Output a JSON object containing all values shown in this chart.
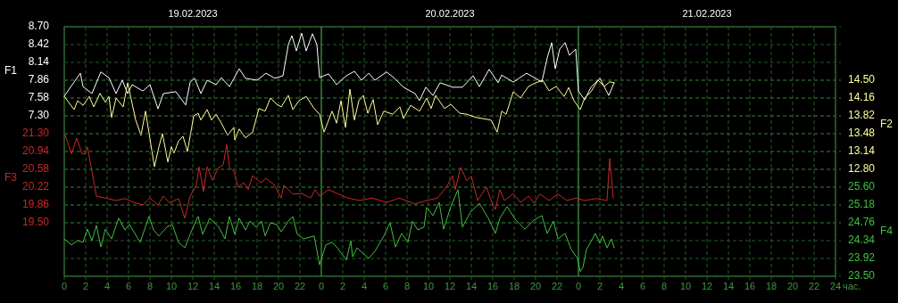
{
  "chart_data": [
    {
      "type": "line",
      "xlim": [
        "2023-02-19T00:00",
        "2023-02-22T00:00"
      ],
      "xticks": [
        {
          "value": "2023-02-19T00:00",
          "label": "0"
        },
        {
          "value": "2023-02-19T02:00",
          "label": "2"
        },
        {
          "value": "2023-02-19T04:00",
          "label": "4"
        },
        {
          "value": "2023-02-19T06:00",
          "label": "6"
        },
        {
          "value": "2023-02-19T08:00",
          "label": "8"
        },
        {
          "value": "2023-02-19T10:00",
          "label": "10"
        },
        {
          "value": "2023-02-19T12:00",
          "label": "12"
        },
        {
          "value": "2023-02-19T14:00",
          "label": "14"
        },
        {
          "value": "2023-02-19T16:00",
          "label": "16"
        },
        {
          "value": "2023-02-19T18:00",
          "label": "18"
        },
        {
          "value": "2023-02-19T20:00",
          "label": "20"
        },
        {
          "value": "2023-02-19T22:00",
          "label": "22"
        },
        {
          "value": "2023-02-20T00:00",
          "label": "0"
        },
        {
          "value": "2023-02-20T02:00",
          "label": "2"
        },
        {
          "value": "2023-02-20T04:00",
          "label": "4"
        },
        {
          "value": "2023-02-20T06:00",
          "label": "6"
        },
        {
          "value": "2023-02-20T08:00",
          "label": "8"
        },
        {
          "value": "2023-02-20T10:00",
          "label": "10"
        },
        {
          "value": "2023-02-20T12:00",
          "label": "12"
        },
        {
          "value": "2023-02-20T14:00",
          "label": "14"
        },
        {
          "value": "2023-02-20T16:00",
          "label": "16"
        },
        {
          "value": "2023-02-20T18:00",
          "label": "18"
        },
        {
          "value": "2023-02-20T20:00",
          "label": "20"
        },
        {
          "value": "2023-02-20T22:00",
          "label": "22"
        },
        {
          "value": "2023-02-21T00:00",
          "label": "0"
        },
        {
          "value": "2023-02-21T02:00",
          "label": "2"
        },
        {
          "value": "2023-02-21T04:00",
          "label": "4"
        },
        {
          "value": "2023-02-21T06:00",
          "label": "6"
        },
        {
          "value": "2023-02-21T08:00",
          "label": "8"
        },
        {
          "value": "2023-02-21T10:00",
          "label": "10"
        },
        {
          "value": "2023-02-21T12:00",
          "label": "12"
        },
        {
          "value": "2023-02-21T14:00",
          "label": "14"
        },
        {
          "value": "2023-02-21T16:00",
          "label": "16"
        },
        {
          "value": "2023-02-21T18:00",
          "label": "18"
        },
        {
          "value": "2023-02-21T20:00",
          "label": "20"
        },
        {
          "value": "2023-02-21T22:00",
          "label": "22"
        },
        {
          "value": "2023-02-22T00:00",
          "label": "24"
        }
      ],
      "xlabel": "час.",
      "x2lim": [
        "2023-02-19T00:00",
        "2023-02-22T00:00"
      ],
      "x2ticks": [
        {
          "value": "2023-02-19T12:00",
          "label": "19.02.2023"
        },
        {
          "value": "2023-02-20T12:00",
          "label": "20.02.2023"
        },
        {
          "value": "2023-02-21T12:00",
          "label": "21.02.2023"
        }
      ],
      "ylabel": "F1",
      "ylim": [
        4.78,
        8.7
      ],
      "yticks": [
        {
          "value": 8.7,
          "label": "8.70"
        },
        {
          "value": 8.42,
          "label": "8.42"
        },
        {
          "value": 8.14,
          "label": "8.14"
        },
        {
          "value": 7.86,
          "label": "7.86"
        },
        {
          "value": 7.58,
          "label": "7.58"
        },
        {
          "value": 7.3,
          "label": "7.30"
        }
      ],
      "y2label": "F2",
      "y2lim": [
        10.76,
        15.52
      ],
      "y2ticks": [
        {
          "value": 14.5,
          "label": "14.50"
        },
        {
          "value": 14.16,
          "label": "14.16"
        },
        {
          "value": 13.82,
          "label": "13.82"
        },
        {
          "value": 13.48,
          "label": "13.48"
        },
        {
          "value": 13.14,
          "label": "13.14"
        },
        {
          "value": 12.8,
          "label": "12.80"
        }
      ],
      "grid": true,
      "series": [
        {
          "color": "#ffffff",
          "axis": "y",
          "x": [
            "2023-02-19T00:00",
            "2023-02-19T01:30",
            "2023-02-19T01:45",
            "2023-02-19T02:35",
            "2023-02-19T03:25",
            "2023-02-19T04:10",
            "2023-02-19T04:50",
            "2023-02-19T05:25",
            "2023-02-19T05:55",
            "2023-02-19T06:20",
            "2023-02-19T07:20",
            "2023-02-19T08:00",
            "2023-02-19T08:45",
            "2023-02-19T09:15",
            "2023-02-19T10:25",
            "2023-02-19T11:20",
            "2023-02-19T11:45",
            "2023-02-19T12:10",
            "2023-02-19T12:45",
            "2023-02-19T13:20",
            "2023-02-19T14:10",
            "2023-02-19T14:40",
            "2023-02-19T15:25",
            "2023-02-19T16:20",
            "2023-02-19T16:55",
            "2023-02-19T18:00",
            "2023-02-19T18:50",
            "2023-02-19T19:40",
            "2023-02-19T20:25",
            "2023-02-19T20:55",
            "2023-02-19T21:15",
            "2023-02-19T21:40",
            "2023-02-19T22:10",
            "2023-02-19T22:35",
            "2023-02-19T23:10",
            "2023-02-19T23:35",
            "2023-02-19T23:50",
            "2023-02-20T00:40",
            "2023-02-20T01:25",
            "2023-02-20T02:20",
            "2023-02-20T03:05",
            "2023-02-20T03:45",
            "2023-02-20T04:25",
            "2023-02-20T05:00",
            "2023-02-20T06:05",
            "2023-02-20T06:50",
            "2023-02-20T07:40",
            "2023-02-20T08:45",
            "2023-02-20T09:10",
            "2023-02-20T09:45",
            "2023-02-20T10:25",
            "2023-02-20T11:05",
            "2023-02-20T12:15",
            "2023-02-20T13:10",
            "2023-02-20T14:10",
            "2023-02-20T14:45",
            "2023-02-20T15:40",
            "2023-02-20T16:30",
            "2023-02-20T16:50",
            "2023-02-20T17:55",
            "2023-02-20T19:10",
            "2023-02-20T20:35",
            "2023-02-20T21:05",
            "2023-02-20T21:30",
            "2023-02-20T21:50",
            "2023-02-20T22:15",
            "2023-02-20T22:45",
            "2023-02-20T23:10",
            "2023-02-20T23:45",
            "2023-02-21T00:00",
            "2023-02-21T00:35",
            "2023-02-21T01:10",
            "2023-02-21T02:00",
            "2023-02-21T02:50",
            "2023-02-21T03:20"
          ],
          "values": [
            7.61,
            7.97,
            7.76,
            7.65,
            7.99,
            7.9,
            7.65,
            7.86,
            7.65,
            7.79,
            7.69,
            7.79,
            7.41,
            7.65,
            7.68,
            7.47,
            7.83,
            7.89,
            7.65,
            7.86,
            7.79,
            7.9,
            7.76,
            8.04,
            7.89,
            7.86,
            7.97,
            7.89,
            7.93,
            8.42,
            8.56,
            8.32,
            8.6,
            8.32,
            8.59,
            8.42,
            7.9,
            7.96,
            7.79,
            7.93,
            8,
            7.86,
            7.97,
            7.86,
            7.99,
            7.89,
            7.75,
            7.65,
            7.54,
            7.75,
            7.62,
            7.82,
            7.75,
            7.75,
            7.93,
            7.76,
            8.03,
            7.82,
            7.94,
            7.83,
            7.97,
            7.83,
            8.21,
            8.45,
            8.04,
            8.35,
            8.45,
            8.25,
            8.35,
            7.69,
            7.55,
            7.75,
            7.89,
            7.62,
            7.82
          ]
        },
        {
          "color": "#ffff99",
          "axis": "y2",
          "x": [
            "2023-02-19T00:00",
            "2023-02-19T00:55",
            "2023-02-19T01:15",
            "2023-02-19T01:45",
            "2023-02-19T02:20",
            "2023-02-19T02:45",
            "2023-02-19T03:20",
            "2023-02-19T03:50",
            "2023-02-19T04:10",
            "2023-02-19T04:25",
            "2023-02-19T04:50",
            "2023-02-19T05:30",
            "2023-02-19T05:55",
            "2023-02-19T06:40",
            "2023-02-19T07:10",
            "2023-02-19T07:35",
            "2023-02-19T08:25",
            "2023-02-19T08:50",
            "2023-02-19T09:10",
            "2023-02-19T09:40",
            "2023-02-19T10:00",
            "2023-02-19T10:15",
            "2023-02-19T10:40",
            "2023-02-19T11:05",
            "2023-02-19T11:30",
            "2023-02-19T12:05",
            "2023-02-19T12:30",
            "2023-02-19T12:45",
            "2023-02-19T13:20",
            "2023-02-19T13:45",
            "2023-02-19T14:10",
            "2023-02-19T14:40",
            "2023-02-19T15:15",
            "2023-02-19T15:50",
            "2023-02-19T15:55",
            "2023-02-19T16:20",
            "2023-02-19T16:55",
            "2023-02-19T17:35",
            "2023-02-19T18:10",
            "2023-02-19T18:45",
            "2023-02-19T19:15",
            "2023-02-19T19:50",
            "2023-02-19T20:15",
            "2023-02-19T20:55",
            "2023-02-19T21:20",
            "2023-02-19T21:55",
            "2023-02-19T22:35",
            "2023-02-19T23:20",
            "2023-02-19T23:50",
            "2023-02-20T00:15",
            "2023-02-20T01:00",
            "2023-02-20T01:25",
            "2023-02-20T01:50",
            "2023-02-20T02:15",
            "2023-02-20T02:40",
            "2023-02-20T03:05",
            "2023-02-20T03:30",
            "2023-02-20T03:55",
            "2023-02-20T04:20",
            "2023-02-20T04:50",
            "2023-02-20T05:15",
            "2023-02-20T05:50",
            "2023-02-20T06:40",
            "2023-02-20T07:20",
            "2023-02-20T07:40",
            "2023-02-20T08:20",
            "2023-02-20T09:10",
            "2023-02-20T09:50",
            "2023-02-20T10:15",
            "2023-02-20T10:40",
            "2023-02-20T11:30",
            "2023-02-20T12:05",
            "2023-02-20T12:55",
            "2023-02-20T13:35",
            "2023-02-20T14:25",
            "2023-02-20T15:00",
            "2023-02-20T15:50",
            "2023-02-20T16:25",
            "2023-02-20T16:50",
            "2023-02-20T17:15",
            "2023-02-20T17:55",
            "2023-02-20T18:35",
            "2023-02-20T19:20",
            "2023-02-20T20:00",
            "2023-02-20T20:40",
            "2023-02-20T21:15",
            "2023-02-20T21:55",
            "2023-02-20T22:40",
            "2023-02-20T23:05",
            "2023-02-20T23:35",
            "2023-02-21T00:10",
            "2023-02-21T00:35",
            "2023-02-21T01:10",
            "2023-02-21T01:50",
            "2023-02-21T02:25",
            "2023-02-21T02:55",
            "2023-02-21T03:20"
          ],
          "values": [
            14.19,
            13.94,
            14.11,
            14.02,
            14.19,
            13.99,
            14.25,
            14.08,
            14.19,
            13.79,
            14.16,
            13.99,
            14.45,
            13.74,
            13.45,
            13.91,
            12.85,
            13.23,
            13.48,
            12.94,
            13.23,
            13.11,
            13.34,
            13.43,
            13.14,
            13.82,
            13.87,
            13.74,
            13.94,
            13.74,
            13.85,
            13.68,
            13.45,
            13.6,
            13.36,
            13.57,
            13.4,
            13.51,
            13.96,
            13.91,
            14.16,
            14.04,
            13.99,
            14.21,
            13.94,
            14.11,
            14.19,
            13.96,
            13.85,
            13.51,
            13.91,
            13.68,
            14.11,
            13.6,
            14.33,
            13.74,
            14.11,
            14.21,
            13.87,
            14.13,
            13.65,
            13.91,
            13.85,
            13.99,
            13.77,
            14.02,
            13.91,
            14.16,
            13.96,
            14.21,
            13.96,
            14.04,
            13.87,
            13.85,
            13.79,
            13.77,
            13.74,
            13.51,
            13.91,
            13.85,
            14.28,
            14.16,
            14.38,
            14.45,
            14.5,
            14.3,
            14.38,
            14.19,
            14.36,
            14.11,
            13.94,
            14.16,
            14.28,
            14.5,
            14.38,
            14.47,
            14.45
          ]
        }
      ]
    },
    {
      "type": "line",
      "xlim": [
        "2023-02-19T00:00",
        "2023-02-22T00:00"
      ],
      "tick_labels": "y",
      "ylabel": "F3",
      "ylim": [
        18.42,
        23.46
      ],
      "yticks": [
        {
          "value": 21.3,
          "label": "21.30"
        },
        {
          "value": 20.94,
          "label": "20.94"
        },
        {
          "value": 20.58,
          "label": "20.58"
        },
        {
          "value": 20.22,
          "label": "20.22"
        },
        {
          "value": 19.86,
          "label": "19.86"
        },
        {
          "value": 19.5,
          "label": "19.50"
        }
      ],
      "y2label": "F4",
      "y2lim": [
        23.5,
        29.38
      ],
      "y2ticks": [
        {
          "value": 25.6,
          "label": "25.60"
        },
        {
          "value": 25.18,
          "label": "25.18"
        },
        {
          "value": 24.76,
          "label": "24.76"
        },
        {
          "value": 24.34,
          "label": "24.34"
        },
        {
          "value": 23.92,
          "label": "23.92"
        },
        {
          "value": 23.5,
          "label": "23.50"
        }
      ],
      "grid": "y",
      "series": [
        {
          "color": "#c82828",
          "axis": "y",
          "x": [
            "2023-02-19T00:05",
            "2023-02-19T00:40",
            "2023-02-19T01:10",
            "2023-02-19T01:40",
            "2023-02-19T01:55",
            "2023-02-19T02:10",
            "2023-02-19T03:00",
            "2023-02-19T03:50",
            "2023-02-19T04:50",
            "2023-02-19T05:40",
            "2023-02-19T06:30",
            "2023-02-19T07:20",
            "2023-02-19T08:00",
            "2023-02-19T08:45",
            "2023-02-19T09:15",
            "2023-02-19T09:50",
            "2023-02-19T10:40",
            "2023-02-19T11:15",
            "2023-02-19T11:45",
            "2023-02-19T12:20",
            "2023-02-19T12:35",
            "2023-02-19T13:00",
            "2023-02-19T13:20",
            "2023-02-19T13:50",
            "2023-02-19T14:25",
            "2023-02-19T14:50",
            "2023-02-19T15:10",
            "2023-02-19T15:25",
            "2023-02-19T15:50",
            "2023-02-19T16:15",
            "2023-02-19T16:45",
            "2023-02-19T17:10",
            "2023-02-19T17:35",
            "2023-02-19T18:20",
            "2023-02-19T18:50",
            "2023-02-19T19:35",
            "2023-02-19T20:15",
            "2023-02-19T20:30",
            "2023-02-19T21:20",
            "2023-02-19T22:10",
            "2023-02-19T23:00",
            "2023-02-19T23:25",
            "2023-02-19T23:50",
            "2023-02-20T00:40",
            "2023-02-20T01:30",
            "2023-02-20T02:30",
            "2023-02-20T03:35",
            "2023-02-20T04:45",
            "2023-02-20T06:05",
            "2023-02-20T07:15",
            "2023-02-20T08:45",
            "2023-02-20T09:50",
            "2023-02-20T10:50",
            "2023-02-20T11:40",
            "2023-02-20T12:15",
            "2023-02-20T12:30",
            "2023-02-20T13:00",
            "2023-02-20T13:35",
            "2023-02-20T14:00",
            "2023-02-20T14:35",
            "2023-02-20T15:25",
            "2023-02-20T16:00",
            "2023-02-20T16:15",
            "2023-02-20T16:40",
            "2023-02-20T17:05",
            "2023-02-20T17:55",
            "2023-02-20T18:35",
            "2023-02-20T19:20",
            "2023-02-20T19:50",
            "2023-02-20T20:25",
            "2023-02-20T21:15",
            "2023-02-20T22:05",
            "2023-02-20T22:55",
            "2023-02-20T23:45",
            "2023-02-21T00:35",
            "2023-02-21T01:40",
            "2023-02-21T02:40",
            "2023-02-21T02:55",
            "2023-02-21T03:15"
          ],
          "values": [
            21.28,
            20.89,
            21.21,
            20.89,
            20.9,
            21.03,
            20.04,
            20,
            19.95,
            19.99,
            19.91,
            19.86,
            20,
            19.86,
            20.04,
            19.9,
            19.99,
            19.59,
            20.04,
            20.26,
            20.63,
            20.13,
            20.63,
            20.36,
            20.62,
            20.67,
            21.08,
            20.62,
            20.54,
            20.22,
            20.31,
            20.17,
            20.45,
            20.31,
            20.4,
            20.27,
            20,
            20.26,
            20.08,
            20.09,
            20,
            20.17,
            20.04,
            20.17,
            20.09,
            20,
            19.95,
            20,
            19.91,
            20,
            19.88,
            19.95,
            20,
            20.22,
            20.45,
            20.17,
            20.62,
            20.35,
            20.44,
            19.95,
            20.22,
            19.86,
            19.77,
            20.17,
            19.95,
            20.09,
            19.91,
            20.04,
            19.9,
            20.08,
            19.95,
            20.08,
            19.95,
            20,
            19.95,
            19.99,
            19.95,
            20.8,
            20
          ]
        },
        {
          "color": "#40c040",
          "axis": "y2",
          "x": [
            "2023-02-19T00:00",
            "2023-02-19T00:40",
            "2023-02-19T01:15",
            "2023-02-19T01:45",
            "2023-02-19T02:10",
            "2023-02-19T02:35",
            "2023-02-19T03:00",
            "2023-02-19T03:25",
            "2023-02-19T03:50",
            "2023-02-19T04:25",
            "2023-02-19T05:05",
            "2023-02-19T05:40",
            "2023-02-19T06:05",
            "2023-02-19T07:05",
            "2023-02-19T07:55",
            "2023-02-19T08:20",
            "2023-02-19T08:50",
            "2023-02-19T09:35",
            "2023-02-19T10:05",
            "2023-02-19T10:40",
            "2023-02-19T11:15",
            "2023-02-19T11:55",
            "2023-02-19T12:30",
            "2023-02-19T12:55",
            "2023-02-19T13:35",
            "2023-02-19T14:25",
            "2023-02-19T15:00",
            "2023-02-19T15:25",
            "2023-02-19T15:55",
            "2023-02-19T16:20",
            "2023-02-19T16:55",
            "2023-02-19T17:20",
            "2023-02-19T17:55",
            "2023-02-19T18:25",
            "2023-02-19T18:45",
            "2023-02-19T19:15",
            "2023-02-19T19:50",
            "2023-02-19T20:15",
            "2023-02-19T20:55",
            "2023-02-19T21:20",
            "2023-02-19T21:45",
            "2023-02-19T22:20",
            "2023-02-19T23:20",
            "2023-02-19T23:50",
            "2023-02-20T00:25",
            "2023-02-20T01:00",
            "2023-02-20T01:30",
            "2023-02-20T02:20",
            "2023-02-20T02:45",
            "2023-02-20T02:55",
            "2023-02-20T03:20",
            "2023-02-20T03:55",
            "2023-02-20T04:25",
            "2023-02-20T05:00",
            "2023-02-20T05:50",
            "2023-02-20T06:25",
            "2023-02-20T06:55",
            "2023-02-20T07:30",
            "2023-02-20T08:05",
            "2023-02-20T08:30",
            "2023-02-20T09:00",
            "2023-02-20T09:35",
            "2023-02-20T09:50",
            "2023-02-20T10:25",
            "2023-02-20T11:00",
            "2023-02-20T11:25",
            "2023-02-20T12:05",
            "2023-02-20T12:45",
            "2023-02-20T13:10",
            "2023-02-20T13:55",
            "2023-02-20T14:45",
            "2023-02-20T15:35",
            "2023-02-20T16:15",
            "2023-02-20T16:40",
            "2023-02-20T17:20",
            "2023-02-20T18:10",
            "2023-02-20T19:00",
            "2023-02-20T19:50",
            "2023-02-20T20:35",
            "2023-02-20T21:05",
            "2023-02-20T21:40",
            "2023-02-20T22:05",
            "2023-02-20T22:45",
            "2023-02-20T23:20",
            "2023-02-20T23:55",
            "2023-02-21T00:10",
            "2023-02-21T00:25",
            "2023-02-21T00:45",
            "2023-02-21T01:00",
            "2023-02-21T01:35",
            "2023-02-21T02:00",
            "2023-02-21T02:15",
            "2023-02-21T02:40",
            "2023-02-21T03:05",
            "2023-02-21T03:20"
          ],
          "values": [
            24.38,
            24.24,
            24.34,
            24.3,
            24.61,
            24.34,
            24.7,
            24.19,
            24.61,
            24.38,
            24.87,
            24.59,
            24.72,
            24.3,
            24.91,
            24.59,
            24.45,
            24.66,
            24.72,
            24.3,
            24.17,
            24.59,
            24.91,
            24.49,
            24.87,
            24.66,
            24.38,
            24.91,
            24.49,
            24.87,
            24.59,
            24.8,
            24.66,
            24.8,
            24.45,
            24.76,
            24.72,
            24.55,
            24.8,
            24.91,
            24.49,
            24.38,
            24.45,
            23.77,
            24.24,
            24.3,
            24.17,
            23.88,
            24.34,
            23.96,
            24.17,
            24.03,
            23.92,
            24.09,
            24.45,
            24.76,
            24.19,
            24.51,
            24.3,
            24.8,
            24.59,
            24.66,
            25.12,
            24.93,
            25.24,
            24.61,
            25.14,
            25.54,
            24.66,
            25.01,
            25.22,
            24.87,
            24.51,
            24.87,
            25.14,
            24.82,
            24.61,
            24.82,
            24.93,
            24.51,
            24.8,
            24.38,
            24.51,
            24.13,
            23.92,
            23.61,
            23.71,
            24.13,
            24.24,
            24.51,
            24.28,
            24.45,
            24.17,
            24.38,
            24.17
          ]
        }
      ]
    }
  ]
}
